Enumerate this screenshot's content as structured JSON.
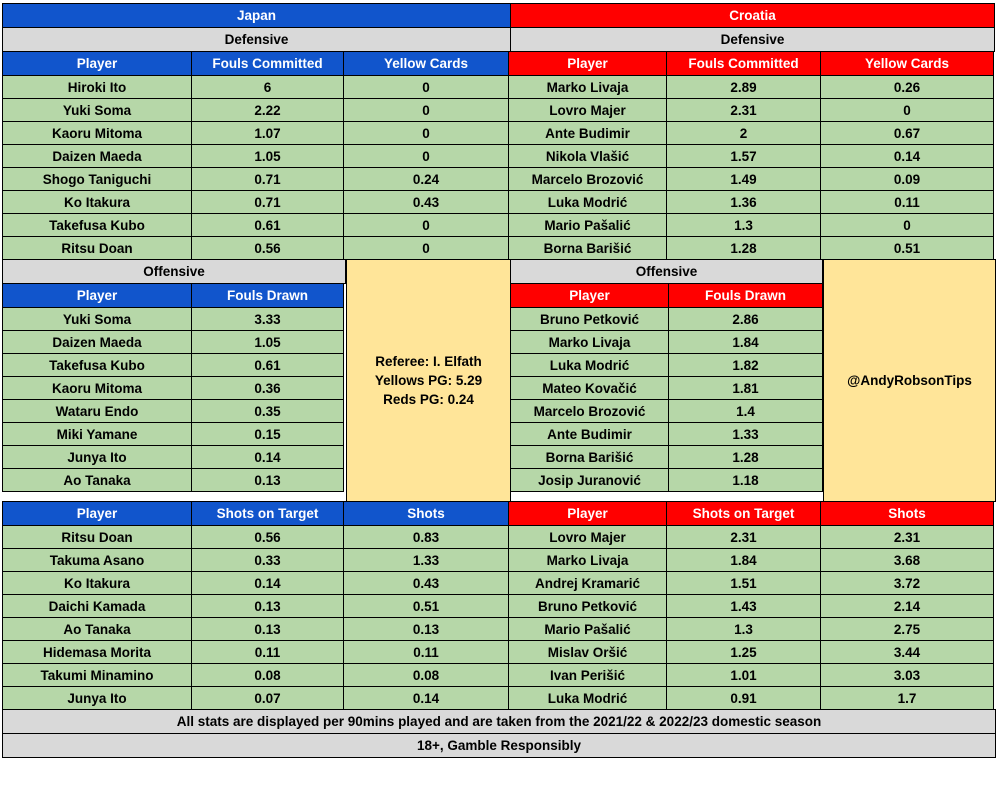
{
  "teams": {
    "left": "Japan",
    "right": "Croatia"
  },
  "defensive": {
    "section_label": "Defensive",
    "headers": [
      "Player",
      "Fouls Committed",
      "Yellow Cards"
    ],
    "left_rows": [
      [
        "Hiroki Ito",
        "6",
        "0"
      ],
      [
        "Yuki Soma",
        "2.22",
        "0"
      ],
      [
        "Kaoru Mitoma",
        "1.07",
        "0"
      ],
      [
        "Daizen Maeda",
        "1.05",
        "0"
      ],
      [
        "Shogo Taniguchi",
        "0.71",
        "0.24"
      ],
      [
        "Ko Itakura",
        "0.71",
        "0.43"
      ],
      [
        "Takefusa Kubo",
        "0.61",
        "0"
      ],
      [
        "Ritsu Doan",
        "0.56",
        "0"
      ]
    ],
    "right_rows": [
      [
        "Marko Livaja",
        "2.89",
        "0.26"
      ],
      [
        "Lovro Majer",
        "2.31",
        "0"
      ],
      [
        "Ante Budimir",
        "2",
        "0.67"
      ],
      [
        "Nikola Vlašić",
        "1.57",
        "0.14"
      ],
      [
        "Marcelo Brozović",
        "1.49",
        "0.09"
      ],
      [
        "Luka Modrić",
        "1.36",
        "0.11"
      ],
      [
        "Mario Pašalić",
        "1.3",
        "0"
      ],
      [
        "Borna Barišić",
        "1.28",
        "0.51"
      ]
    ]
  },
  "offensive": {
    "section_label": "Offensive",
    "headers": [
      "Player",
      "Fouls Drawn"
    ],
    "left_rows": [
      [
        "Yuki Soma",
        "3.33"
      ],
      [
        "Daizen Maeda",
        "1.05"
      ],
      [
        "Takefusa Kubo",
        "0.61"
      ],
      [
        "Kaoru Mitoma",
        "0.36"
      ],
      [
        "Wataru Endo",
        "0.35"
      ],
      [
        "Miki Yamane",
        "0.15"
      ],
      [
        "Junya Ito",
        "0.14"
      ],
      [
        "Ao Tanaka",
        "0.13"
      ]
    ],
    "right_rows": [
      [
        "Bruno Petković",
        "2.86"
      ],
      [
        "Marko Livaja",
        "1.84"
      ],
      [
        "Luka Modrić",
        "1.82"
      ],
      [
        "Mateo Kovačić",
        "1.81"
      ],
      [
        "Marcelo Brozović",
        "1.4"
      ],
      [
        "Ante Budimir",
        "1.33"
      ],
      [
        "Borna Barišić",
        "1.28"
      ],
      [
        "Josip Juranović",
        "1.18"
      ]
    ],
    "referee": {
      "name": "Referee: I. Elfath",
      "yellows": "Yellows PG: 5.29",
      "reds": "Reds PG: 0.24"
    },
    "handle": "@AndyRobsonTips"
  },
  "shots": {
    "headers": [
      "Player",
      "Shots on Target",
      "Shots"
    ],
    "left_rows": [
      [
        "Ritsu Doan",
        "0.56",
        "0.83"
      ],
      [
        "Takuma Asano",
        "0.33",
        "1.33"
      ],
      [
        "Ko Itakura",
        "0.14",
        "0.43"
      ],
      [
        "Daichi Kamada",
        "0.13",
        "0.51"
      ],
      [
        "Ao Tanaka",
        "0.13",
        "0.13"
      ],
      [
        "Hidemasa Morita",
        "0.11",
        "0.11"
      ],
      [
        "Takumi Minamino",
        "0.08",
        "0.08"
      ],
      [
        "Junya Ito",
        "0.07",
        "0.14"
      ]
    ],
    "right_rows": [
      [
        "Lovro Majer",
        "2.31",
        "2.31"
      ],
      [
        "Marko Livaja",
        "1.84",
        "3.68"
      ],
      [
        "Andrej Kramarić",
        "1.51",
        "3.72"
      ],
      [
        "Bruno Petković",
        "1.43",
        "2.14"
      ],
      [
        "Mario Pašalić",
        "1.3",
        "2.75"
      ],
      [
        "Mislav Oršić",
        "1.25",
        "3.44"
      ],
      [
        "Ivan Perišić",
        "1.01",
        "3.03"
      ],
      [
        "Luka Modrić",
        "0.91",
        "1.7"
      ]
    ]
  },
  "footer": {
    "note": "All stats are displayed per 90mins played and are taken from the 2021/22 & 2022/23 domestic season",
    "disclaimer": "18+, Gamble Responsibly"
  },
  "colors": {
    "japan": "#1155cc",
    "croatia": "#ff0000",
    "section": "#d9d9d9",
    "data": "#b6d7a8",
    "highlight": "#ffe599"
  }
}
